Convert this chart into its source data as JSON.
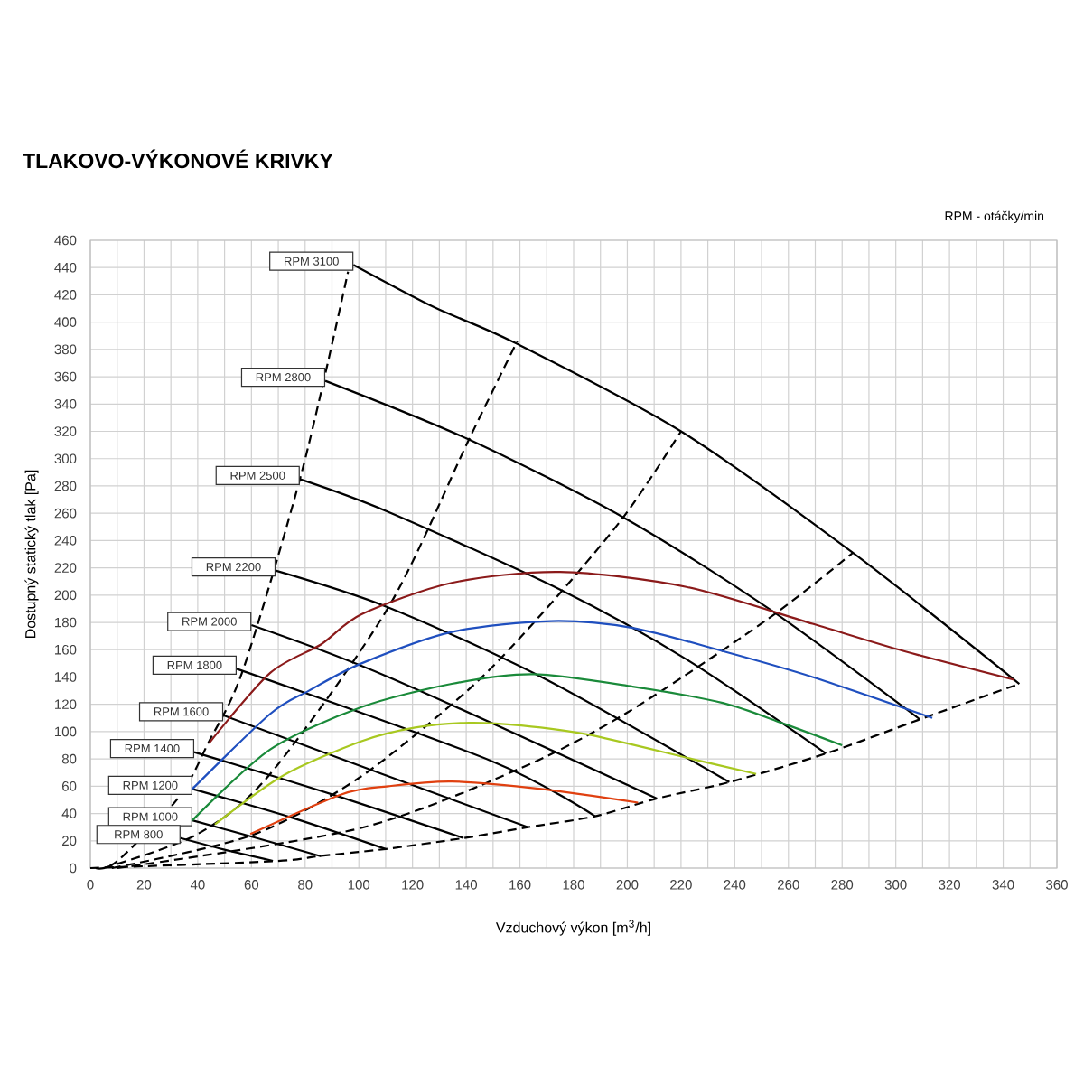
{
  "chart_data": {
    "type": "line",
    "title": "TLAKOVO-VÝKONOVÉ KRIVKY",
    "xlabel": "Vzduchový výkon [m$^{3}$/h]",
    "ylabel": "Dostupný statický tlak [Pa]",
    "annotations": [
      "RPM - otáčky/min"
    ],
    "xlim": [
      0,
      360
    ],
    "ylim": [
      0,
      460
    ],
    "xticks": [
      0,
      20,
      40,
      60,
      80,
      100,
      120,
      140,
      160,
      180,
      200,
      220,
      240,
      260,
      280,
      300,
      320,
      340,
      360
    ],
    "yticks": [
      0,
      20,
      40,
      60,
      80,
      100,
      120,
      140,
      160,
      180,
      200,
      220,
      240,
      260,
      280,
      300,
      320,
      340,
      360,
      380,
      400,
      420,
      440,
      460
    ],
    "grid": true,
    "series": [
      {
        "name": "RPM 3100",
        "color": "#000000",
        "x": [
          98,
          128,
          158,
          220,
          284,
          346
        ],
        "values": [
          442,
          411,
          385,
          320,
          231,
          135
        ]
      },
      {
        "name": "RPM 2800",
        "color": "#000000",
        "x": [
          87.5,
          141,
          198.5,
          252,
          309
        ],
        "values": [
          357,
          314,
          257,
          191,
          109
        ]
      },
      {
        "name": "RPM 2500",
        "color": "#000000",
        "x": [
          78,
          111,
          175,
          222,
          274
        ],
        "values": [
          285,
          261,
          204,
          153,
          84
        ]
      },
      {
        "name": "RPM 2200",
        "color": "#000000",
        "x": [
          69,
          111,
          168,
          238
        ],
        "values": [
          218,
          191,
          140,
          63
        ]
      },
      {
        "name": "RPM 2000",
        "color": "#000000",
        "x": [
          60,
          111,
          211
        ],
        "values": [
          178,
          140,
          51
        ]
      },
      {
        "name": "RPM 1800",
        "color": "#000000",
        "x": [
          54.5,
          150,
          188
        ],
        "values": [
          146,
          78,
          38
        ]
      },
      {
        "name": "RPM 1600",
        "color": "#000000",
        "x": [
          49.5,
          110,
          163
        ],
        "values": [
          112,
          68,
          30
        ]
      },
      {
        "name": "RPM 1400",
        "color": "#000000",
        "x": [
          38.7,
          90,
          139
        ],
        "values": [
          85,
          54,
          22
        ]
      },
      {
        "name": "RPM 1200",
        "color": "#000000",
        "x": [
          38,
          75,
          110
        ],
        "values": [
          58,
          37,
          14
        ]
      },
      {
        "name": "RPM 1000",
        "color": "#000000",
        "x": [
          38,
          62,
          86
        ],
        "values": [
          35,
          22,
          8.6
        ]
      },
      {
        "name": "RPM 800",
        "color": "#000000",
        "x": [
          33.6,
          51,
          68
        ],
        "values": [
          22,
          13,
          5.3
        ]
      },
      {
        "color": "#000000",
        "line_style": "dashed",
        "x": [
          2,
          10,
          33,
          44,
          57,
          79,
          96
        ],
        "values": [
          0,
          5,
          52,
          92,
          146,
          292,
          437
        ]
      },
      {
        "color": "#000000",
        "line_style": "dashed",
        "x": [
          5,
          40,
          67,
          111,
          141,
          159
        ],
        "values": [
          0,
          25,
          69,
          191,
          314,
          386
        ]
      },
      {
        "color": "#000000",
        "line_style": "dashed",
        "x": [
          8,
          60,
          100,
          141,
          168,
          198.5,
          220
        ],
        "values": [
          0,
          24,
          66,
          131,
          186,
          257,
          320
        ]
      },
      {
        "color": "#000000",
        "line_style": "dashed",
        "x": [
          10,
          100,
          160,
          200,
          252,
          284
        ],
        "values": [
          0,
          29,
          73,
          114,
          182,
          231
        ]
      },
      {
        "color": "#000000",
        "line_style": "dashed",
        "x": [
          0,
          68,
          86,
          110,
          139,
          163,
          188,
          211,
          238,
          274,
          309,
          346
        ],
        "values": [
          0,
          5,
          9,
          14,
          22,
          30,
          38,
          51,
          63,
          84,
          109,
          135
        ]
      },
      {
        "color": "#8b1a1a",
        "x": [
          44.4,
          67,
          86,
          101,
          134.6,
          175,
          222,
          269,
          303,
          344
        ],
        "values": [
          92,
          143,
          164,
          186,
          209,
          217,
          206,
          179,
          159,
          138
        ]
      },
      {
        "color": "#1f4fbf",
        "x": [
          38,
          67,
          81.4,
          101,
          134.6,
          171.6,
          202,
          235.5,
          269,
          313.6
        ],
        "values": [
          58,
          113,
          130,
          150,
          173,
          181,
          176,
          159,
          140,
          110
        ]
      },
      {
        "color": "#1a8a3a",
        "x": [
          38,
          67,
          101,
          134.6,
          165,
          202,
          235.5,
          258,
          280
        ],
        "values": [
          35,
          87,
          118,
          135,
          142,
          133,
          121,
          106,
          90
        ]
      },
      {
        "color": "#a8c820",
        "x": [
          46.4,
          72,
          101,
          121,
          141,
          160.5,
          185,
          224,
          248
        ],
        "values": [
          32,
          68,
          93,
          103,
          106.5,
          104.5,
          98,
          80,
          69
        ]
      },
      {
        "color": "#e04010",
        "x": [
          59.6,
          93.5,
          111,
          134.6,
          168,
          204
        ],
        "values": [
          25,
          54,
          60,
          63.5,
          58,
          48
        ]
      }
    ]
  }
}
